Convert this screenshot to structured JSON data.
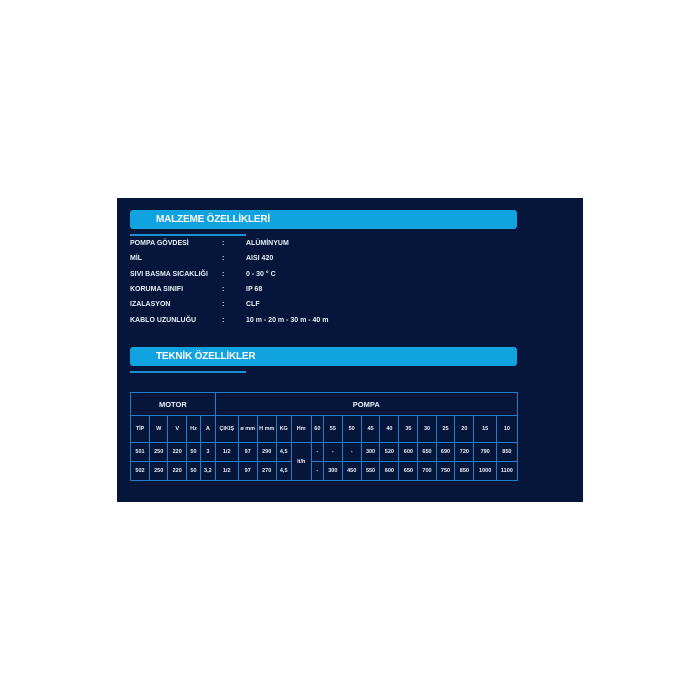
{
  "colors": {
    "background": "#06163a",
    "accent": "#11a3e0",
    "border": "#1f7fc8"
  },
  "material": {
    "title": "MALZEME ÖZELLİKLERİ",
    "rows": [
      {
        "key": "POMPA GÖVDESİ",
        "sep": ":",
        "value": "ALÜMİNYUM"
      },
      {
        "key": "MİL",
        "sep": ":",
        "value": "AISI 420"
      },
      {
        "key": "SIVI BASMA SICAKLIĞI",
        "sep": ":",
        "value": "0 - 30 ° C"
      },
      {
        "key": "KORUMA SINIFI",
        "sep": ":",
        "value": "IP 68"
      },
      {
        "key": "IZALASYON",
        "sep": ":",
        "value": "CLF"
      },
      {
        "key": "KABLO UZUNLUĞU",
        "sep": ":",
        "value": "10 m - 20 m - 30 m - 40 m"
      }
    ]
  },
  "technical": {
    "title": "TEKNİK ÖZELLİKLER",
    "group_motor": "MOTOR",
    "group_pump": "POMPA",
    "headers": [
      "TİP",
      "W",
      "V",
      "Hz",
      "A",
      "ÇIKIŞ",
      "ø mm",
      "H mm",
      "KG",
      "Hm",
      "60",
      "55",
      "50",
      "45",
      "40",
      "35",
      "30",
      "25",
      "20",
      "15",
      "10"
    ],
    "unit": "lt/h",
    "rows": [
      {
        "pre": [
          "501",
          "250",
          "220",
          "50",
          "3",
          "1/2",
          "97",
          "290",
          "4,5"
        ],
        "post": [
          "-",
          "-",
          "-",
          "300",
          "520",
          "600",
          "650",
          "690",
          "720",
          "790",
          "850"
        ]
      },
      {
        "pre": [
          "502",
          "250",
          "220",
          "50",
          "3,2",
          "1/2",
          "97",
          "270",
          "4,5"
        ],
        "post": [
          "-",
          "300",
          "450",
          "550",
          "600",
          "650",
          "700",
          "750",
          "850",
          "1000",
          "1100"
        ]
      }
    ]
  }
}
